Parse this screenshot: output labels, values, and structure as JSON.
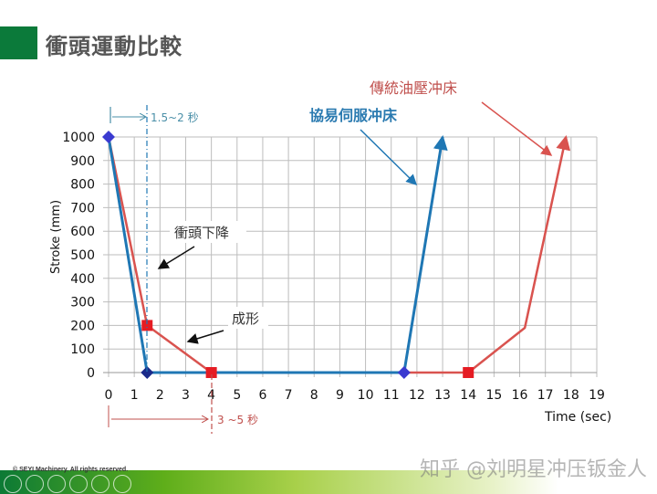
{
  "title": "衝頭運動比較",
  "footer": {
    "copyright": "© SEYI Machinery. All rights reserved.",
    "watermark": "知乎 @刘明星冲压钣金人"
  },
  "colors": {
    "servo": "#1f77b4",
    "hydraulic": "#d9534f",
    "brand_green": "#0b7a3a"
  },
  "chart_data": {
    "type": "line",
    "xlabel": "Time (sec)",
    "ylabel": "Stroke (mm)",
    "xlim": [
      0,
      19
    ],
    "ylim": [
      0,
      1000
    ],
    "xticks": [
      0,
      1,
      2,
      3,
      4,
      5,
      6,
      7,
      8,
      9,
      10,
      11,
      12,
      13,
      14,
      15,
      16,
      17,
      18,
      19
    ],
    "yticks": [
      0,
      100,
      200,
      300,
      400,
      500,
      600,
      700,
      800,
      900,
      1000
    ],
    "grid": true,
    "series": [
      {
        "name": "協易伺服冲床",
        "color": "#1f77b4",
        "marker": "diamond",
        "x": [
          0,
          1.5,
          11.5,
          13
        ],
        "y": [
          1000,
          0,
          0,
          1000
        ],
        "marked": [
          0,
          1,
          2
        ]
      },
      {
        "name": "傳統油壓冲床",
        "color": "#d9534f",
        "marker": "square",
        "x": [
          0,
          1.5,
          4,
          14,
          16.2,
          17.8
        ],
        "y": [
          1000,
          200,
          0,
          0,
          190,
          1000
        ],
        "marked": [
          1,
          2,
          3
        ]
      }
    ],
    "annotations": {
      "servo_interval": "1.5~2 秒",
      "hydraulic_interval": "3 ~5 秒",
      "descent": "衝頭下降",
      "forming": "成形"
    }
  }
}
